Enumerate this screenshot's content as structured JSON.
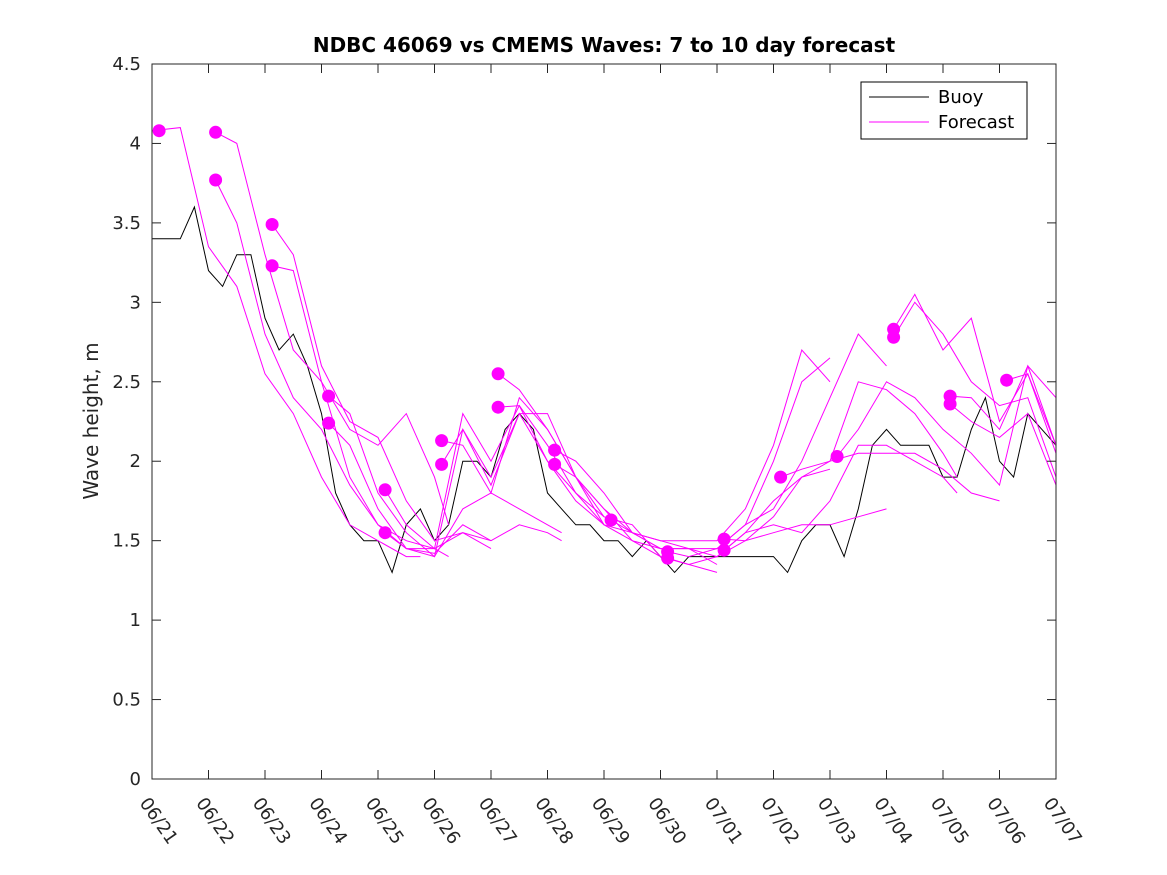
{
  "chart_data": {
    "type": "line",
    "title": "NDBC 46069 vs CMEMS Waves: 7 to 10 day forecast",
    "xlabel": "",
    "ylabel": "Wave height, m",
    "ylim": [
      0,
      4.5
    ],
    "yticks": [
      0,
      0.5,
      1,
      1.5,
      2,
      2.5,
      3,
      3.5,
      4,
      4.5
    ],
    "ytick_labels": [
      "0",
      "0.5",
      "1",
      "1.5",
      "2",
      "2.5",
      "3",
      "3.5",
      "4",
      "4.5"
    ],
    "xlim": [
      "06/21",
      "07/07"
    ],
    "xtick_labels": [
      "06/21",
      "06/22",
      "06/23",
      "06/24",
      "06/25",
      "06/26",
      "06/27",
      "06/28",
      "06/29",
      "06/30",
      "07/01",
      "07/02",
      "07/03",
      "07/04",
      "07/05",
      "07/06",
      "07/07"
    ],
    "grid": false,
    "legend_position": "top-right",
    "colors": {
      "buoy": "#000000",
      "forecast": "#ff00ff"
    },
    "buoy": {
      "name": "Buoy",
      "x": [
        "06/21 00:00",
        "06/21 06:00",
        "06/21 12:00",
        "06/21 18:00",
        "06/22 00:00",
        "06/22 06:00",
        "06/22 12:00",
        "06/22 18:00",
        "06/23 00:00",
        "06/23 06:00",
        "06/23 12:00",
        "06/23 18:00",
        "06/24 00:00",
        "06/24 06:00",
        "06/24 12:00",
        "06/24 18:00",
        "06/25 00:00",
        "06/25 06:00",
        "06/25 12:00",
        "06/25 18:00",
        "06/26 00:00",
        "06/26 06:00",
        "06/26 12:00",
        "06/26 18:00",
        "06/27 00:00",
        "06/27 06:00",
        "06/27 12:00",
        "06/27 18:00",
        "06/28 00:00",
        "06/28 06:00",
        "06/28 12:00",
        "06/28 18:00",
        "06/29 00:00",
        "06/29 06:00",
        "06/29 12:00",
        "06/29 18:00",
        "06/30 00:00",
        "06/30 06:00",
        "06/30 12:00",
        "06/30 18:00",
        "07/01 00:00",
        "07/01 06:00",
        "07/01 12:00",
        "07/01 18:00",
        "07/02 00:00",
        "07/02 06:00",
        "07/02 12:00",
        "07/02 18:00",
        "07/03 00:00",
        "07/03 06:00",
        "07/03 12:00",
        "07/03 18:00",
        "07/04 00:00",
        "07/04 06:00",
        "07/04 12:00",
        "07/04 18:00",
        "07/05 00:00",
        "07/05 06:00",
        "07/05 12:00",
        "07/05 18:00",
        "07/06 00:00",
        "07/06 06:00",
        "07/06 12:00",
        "07/06 18:00",
        "07/07 00:00"
      ],
      "y": [
        3.4,
        3.4,
        3.4,
        3.6,
        3.2,
        3.1,
        3.3,
        3.3,
        2.9,
        2.7,
        2.8,
        2.6,
        2.3,
        1.8,
        1.6,
        1.5,
        1.5,
        1.3,
        1.6,
        1.7,
        1.5,
        1.6,
        2.0,
        2.0,
        1.9,
        2.2,
        2.3,
        2.2,
        1.8,
        1.7,
        1.6,
        1.6,
        1.5,
        1.5,
        1.4,
        1.5,
        1.4,
        1.3,
        1.4,
        1.4,
        1.4,
        1.4,
        1.4,
        1.4,
        1.4,
        1.3,
        1.5,
        1.6,
        1.6,
        1.4,
        1.7,
        2.1,
        2.2,
        2.1,
        2.1,
        2.1,
        1.9,
        1.9,
        2.2,
        2.4,
        2.0,
        1.9,
        2.3,
        2.2,
        2.1
      ]
    },
    "forecast": {
      "name": "Forecast",
      "series": [
        {
          "x": [
            "06/21 00:00",
            "06/21 12:00",
            "06/22 00:00",
            "06/22 12:00",
            "06/23 00:00",
            "06/23 12:00",
            "06/24 00:00",
            "06/24 12:00",
            "06/25 00:00",
            "06/25 12:00",
            "06/25 18:00"
          ],
          "y": [
            4.08,
            4.1,
            3.35,
            3.1,
            2.55,
            2.3,
            1.9,
            1.6,
            1.5,
            1.4,
            1.4
          ]
        },
        {
          "x": [
            "06/22 03:00",
            "06/22 12:00",
            "06/23 00:00",
            "06/23 12:00",
            "06/24 00:00",
            "06/24 12:00",
            "06/25 00:00",
            "06/25 12:00",
            "06/26 00:00",
            "06/26 06:00"
          ],
          "y": [
            4.07,
            4.0,
            3.3,
            2.7,
            2.5,
            2.2,
            2.1,
            2.3,
            1.9,
            1.6
          ]
        },
        {
          "x": [
            "06/22 03:00",
            "06/22 12:00",
            "06/23 00:00",
            "06/23 12:00",
            "06/24 00:00",
            "06/24 12:00",
            "06/25 00:00",
            "06/25 12:00",
            "06/26 00:00",
            "06/26 06:00"
          ],
          "y": [
            3.77,
            3.5,
            2.8,
            2.4,
            2.2,
            1.85,
            1.6,
            1.5,
            1.45,
            1.4
          ]
        },
        {
          "x": [
            "06/23 03:00",
            "06/23 12:00",
            "06/24 00:00",
            "06/24 12:00",
            "06/25 00:00",
            "06/25 12:00",
            "06/26 00:00",
            "06/26 12:00",
            "06/27 00:00"
          ],
          "y": [
            3.49,
            3.3,
            2.6,
            2.25,
            2.15,
            1.75,
            1.5,
            1.55,
            1.5
          ]
        },
        {
          "x": [
            "06/23 03:00",
            "06/23 12:00",
            "06/24 00:00",
            "06/24 12:00",
            "06/25 00:00",
            "06/25 12:00",
            "06/26 00:00",
            "06/26 12:00",
            "06/27 00:00"
          ],
          "y": [
            3.23,
            3.2,
            2.5,
            1.9,
            1.6,
            1.45,
            1.45,
            1.55,
            1.45
          ]
        },
        {
          "x": [
            "06/24 03:00",
            "06/24 12:00",
            "06/25 00:00",
            "06/25 12:00",
            "06/26 00:00",
            "06/26 12:00",
            "06/27 00:00",
            "06/27 12:00",
            "06/28 00:00",
            "06/28 06:00"
          ],
          "y": [
            2.41,
            2.3,
            1.8,
            1.55,
            1.4,
            1.7,
            1.8,
            1.7,
            1.6,
            1.55
          ]
        },
        {
          "x": [
            "06/24 03:00",
            "06/24 12:00",
            "06/25 00:00",
            "06/25 12:00",
            "06/26 00:00",
            "06/26 12:00",
            "06/27 00:00",
            "06/27 12:00",
            "06/28 00:00",
            "06/28 06:00"
          ],
          "y": [
            2.24,
            2.1,
            1.7,
            1.45,
            1.42,
            1.6,
            1.5,
            1.6,
            1.55,
            1.5
          ]
        },
        {
          "x": [
            "06/25 03:00",
            "06/25 12:00",
            "06/26 00:00",
            "06/26 12:00",
            "06/27 00:00",
            "06/27 12:00",
            "06/28 00:00",
            "06/28 12:00",
            "06/29 00:00"
          ],
          "y": [
            1.82,
            1.6,
            1.45,
            2.3,
            2.0,
            2.35,
            2.1,
            1.8,
            1.65
          ]
        },
        {
          "x": [
            "06/25 03:00",
            "06/25 12:00",
            "06/26 00:00",
            "06/26 12:00",
            "06/27 00:00",
            "06/27 12:00",
            "06/28 00:00",
            "06/28 12:00",
            "06/29 00:00"
          ],
          "y": [
            1.55,
            1.45,
            1.4,
            2.2,
            1.9,
            2.3,
            2.0,
            1.75,
            1.6
          ]
        },
        {
          "x": [
            "06/26 03:00",
            "06/26 12:00",
            "06/27 00:00",
            "06/27 12:00",
            "06/28 00:00",
            "06/28 12:00",
            "06/29 00:00",
            "06/29 12:00",
            "06/30 00:00"
          ],
          "y": [
            2.13,
            2.1,
            1.8,
            2.4,
            2.2,
            1.9,
            1.6,
            1.55,
            1.45
          ]
        },
        {
          "x": [
            "06/26 03:00",
            "06/26 12:00",
            "06/27 00:00",
            "06/27 12:00",
            "06/28 00:00",
            "06/28 12:00",
            "06/29 00:00",
            "06/29 12:00",
            "06/30 00:00"
          ],
          "y": [
            1.98,
            2.2,
            1.85,
            2.3,
            2.3,
            1.9,
            1.65,
            1.6,
            1.4
          ]
        },
        {
          "x": [
            "06/27 03:00",
            "06/27 12:00",
            "06/28 00:00",
            "06/28 12:00",
            "06/29 00:00",
            "06/29 12:00",
            "06/30 00:00",
            "06/30 12:00",
            "07/01 00:00"
          ],
          "y": [
            2.55,
            2.45,
            2.2,
            1.9,
            1.7,
            1.55,
            1.45,
            1.45,
            1.35
          ]
        },
        {
          "x": [
            "06/27 03:00",
            "06/27 12:00",
            "06/28 00:00",
            "06/28 12:00",
            "06/29 00:00",
            "06/29 12:00",
            "06/30 00:00",
            "06/30 12:00",
            "07/01 00:00"
          ],
          "y": [
            2.34,
            2.35,
            2.0,
            1.8,
            1.6,
            1.5,
            1.4,
            1.35,
            1.3
          ]
        },
        {
          "x": [
            "06/28 03:00",
            "06/28 12:00",
            "06/29 00:00",
            "06/29 12:00",
            "06/30 00:00",
            "06/30 12:00",
            "07/01 00:00",
            "07/01 12:00",
            "07/02 00:00",
            "07/02 12:00",
            "07/03 00:00"
          ],
          "y": [
            2.07,
            2.0,
            1.8,
            1.55,
            1.5,
            1.5,
            1.5,
            1.7,
            2.1,
            2.7,
            2.5
          ]
        },
        {
          "x": [
            "06/28 03:00",
            "06/28 12:00",
            "06/29 00:00",
            "06/29 12:00",
            "06/30 00:00",
            "06/30 12:00",
            "07/01 00:00",
            "07/01 12:00",
            "07/02 00:00",
            "07/02 12:00",
            "07/03 00:00"
          ],
          "y": [
            1.98,
            1.9,
            1.7,
            1.5,
            1.45,
            1.45,
            1.45,
            1.6,
            2.0,
            2.5,
            2.65
          ]
        },
        {
          "x": [
            "06/29 03:00",
            "06/29 12:00",
            "06/30 00:00",
            "06/30 12:00",
            "07/01 00:00",
            "07/01 12:00",
            "07/02 00:00",
            "07/02 12:00",
            "07/03 00:00"
          ],
          "y": [
            1.63,
            1.55,
            1.5,
            1.45,
            1.4,
            1.55,
            1.75,
            1.9,
            1.95
          ]
        },
        {
          "x": [
            "06/30 03:00",
            "06/30 12:00",
            "07/01 00:00",
            "07/01 12:00",
            "07/02 00:00",
            "07/02 12:00",
            "07/03 00:00",
            "07/03 12:00",
            "07/04 00:00"
          ],
          "y": [
            1.43,
            1.4,
            1.45,
            1.6,
            1.7,
            2.0,
            2.4,
            2.8,
            2.6
          ]
        },
        {
          "x": [
            "06/30 03:00",
            "06/30 12:00",
            "07/01 00:00",
            "07/01 12:00",
            "07/02 00:00",
            "07/02 12:00",
            "07/03 00:00",
            "07/03 12:00",
            "07/04 00:00"
          ],
          "y": [
            1.39,
            1.35,
            1.4,
            1.5,
            1.55,
            1.6,
            1.6,
            1.65,
            1.7
          ]
        },
        {
          "x": [
            "07/01 03:00",
            "07/01 12:00",
            "07/02 00:00",
            "07/02 12:00",
            "07/03 00:00",
            "07/03 12:00",
            "07/04 00:00",
            "07/04 12:00",
            "07/05 00:00",
            "07/05 06:00"
          ],
          "y": [
            1.51,
            1.5,
            1.65,
            1.9,
            2.0,
            2.5,
            2.45,
            2.3,
            2.05,
            1.9
          ]
        },
        {
          "x": [
            "07/01 03:00",
            "07/01 12:00",
            "07/02 00:00",
            "07/02 12:00",
            "07/03 00:00",
            "07/03 12:00",
            "07/04 00:00",
            "07/04 12:00",
            "07/05 00:00",
            "07/05 06:00"
          ],
          "y": [
            1.44,
            1.55,
            1.6,
            1.55,
            1.75,
            2.1,
            2.1,
            2.0,
            1.9,
            1.8
          ]
        },
        {
          "x": [
            "07/02 03:00",
            "07/02 12:00",
            "07/03 00:00",
            "07/03 12:00",
            "07/04 00:00",
            "07/04 12:00",
            "07/05 00:00",
            "07/05 12:00",
            "07/06 00:00"
          ],
          "y": [
            1.9,
            1.95,
            2.0,
            2.05,
            2.05,
            2.05,
            1.95,
            1.8,
            1.75
          ]
        },
        {
          "x": [
            "07/03 03:00",
            "07/03 12:00",
            "07/04 00:00",
            "07/04 12:00",
            "07/05 00:00",
            "07/05 12:00",
            "07/06 00:00",
            "07/06 12:00",
            "07/07 00:00"
          ],
          "y": [
            2.03,
            2.2,
            2.5,
            2.4,
            2.2,
            2.05,
            1.85,
            2.6,
            2.4
          ]
        },
        {
          "x": [
            "07/04 03:00",
            "07/04 12:00",
            "07/05 00:00",
            "07/05 12:00",
            "07/06 00:00",
            "07/06 12:00",
            "07/07 00:00"
          ],
          "y": [
            2.83,
            3.05,
            2.7,
            2.9,
            2.25,
            2.55,
            2.05
          ]
        },
        {
          "x": [
            "07/04 03:00",
            "07/04 12:00",
            "07/05 00:00",
            "07/05 12:00",
            "07/06 00:00",
            "07/06 12:00",
            "07/07 00:00"
          ],
          "y": [
            2.78,
            3.0,
            2.8,
            2.5,
            2.35,
            2.4,
            1.9
          ]
        },
        {
          "x": [
            "07/05 03:00",
            "07/05 12:00",
            "07/06 00:00",
            "07/06 12:00",
            "07/07 00:00"
          ],
          "y": [
            2.41,
            2.4,
            2.2,
            2.6,
            2.1
          ]
        },
        {
          "x": [
            "07/05 03:00",
            "07/05 12:00",
            "07/06 00:00",
            "07/06 12:00",
            "07/07 00:00"
          ],
          "y": [
            2.36,
            2.25,
            2.15,
            2.3,
            1.85
          ]
        },
        {
          "x": [
            "07/06 03:00",
            "07/06 12:00",
            "07/07 00:00"
          ],
          "y": [
            2.51,
            2.55,
            2.1
          ]
        }
      ],
      "markers": {
        "x": [
          "06/21 03:00",
          "06/22 03:00",
          "06/22 03:00",
          "06/23 03:00",
          "06/23 03:00",
          "06/24 03:00",
          "06/24 03:00",
          "06/25 03:00",
          "06/25 03:00",
          "06/26 03:00",
          "06/26 03:00",
          "06/27 03:00",
          "06/27 03:00",
          "06/28 03:00",
          "06/28 03:00",
          "06/29 03:00",
          "06/30 03:00",
          "06/30 03:00",
          "07/01 03:00",
          "07/01 03:00",
          "07/02 03:00",
          "07/03 03:00",
          "07/04 03:00",
          "07/04 03:00",
          "07/05 03:00",
          "07/05 03:00",
          "07/06 03:00"
        ],
        "y": [
          4.08,
          4.07,
          3.77,
          3.49,
          3.23,
          2.41,
          2.24,
          1.82,
          1.55,
          2.13,
          1.98,
          2.55,
          2.34,
          2.07,
          1.98,
          1.63,
          1.43,
          1.39,
          1.51,
          1.44,
          1.9,
          2.03,
          2.83,
          2.78,
          2.41,
          2.36,
          2.51
        ]
      }
    }
  }
}
